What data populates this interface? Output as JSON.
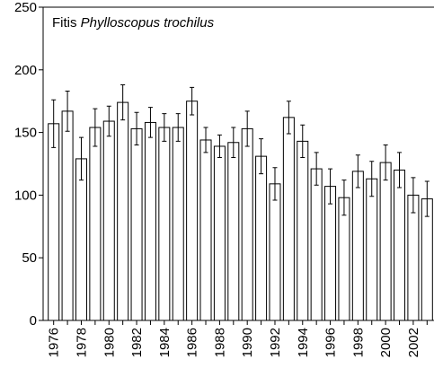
{
  "chart_data": {
    "type": "bar",
    "title": "Fitis",
    "species": "Phylloscopus trochilus",
    "categories": [
      "1976",
      null,
      "1978",
      null,
      "1980",
      null,
      "1982",
      null,
      "1984",
      null,
      "1986",
      null,
      "1988",
      null,
      "1990",
      null,
      "1992",
      null,
      "1994",
      null,
      "1996",
      null,
      "1998",
      null,
      "2000",
      null,
      "2002",
      null
    ],
    "values": [
      157,
      167,
      129,
      154,
      159,
      174,
      153,
      158,
      154,
      154,
      175,
      144,
      139,
      142,
      153,
      131,
      109,
      162,
      143,
      121,
      107,
      98,
      119,
      113,
      126,
      120,
      100,
      97
    ],
    "errors": [
      19,
      16,
      17,
      15,
      12,
      14,
      13,
      12,
      11,
      11,
      11,
      10,
      9,
      12,
      14,
      14,
      13,
      13,
      13,
      13,
      14,
      14,
      13,
      14,
      14,
      14,
      14,
      14
    ],
    "color": "#ffffff",
    "ylim": [
      0,
      250
    ],
    "yticks": [
      0,
      50,
      100,
      150,
      200,
      250
    ]
  }
}
